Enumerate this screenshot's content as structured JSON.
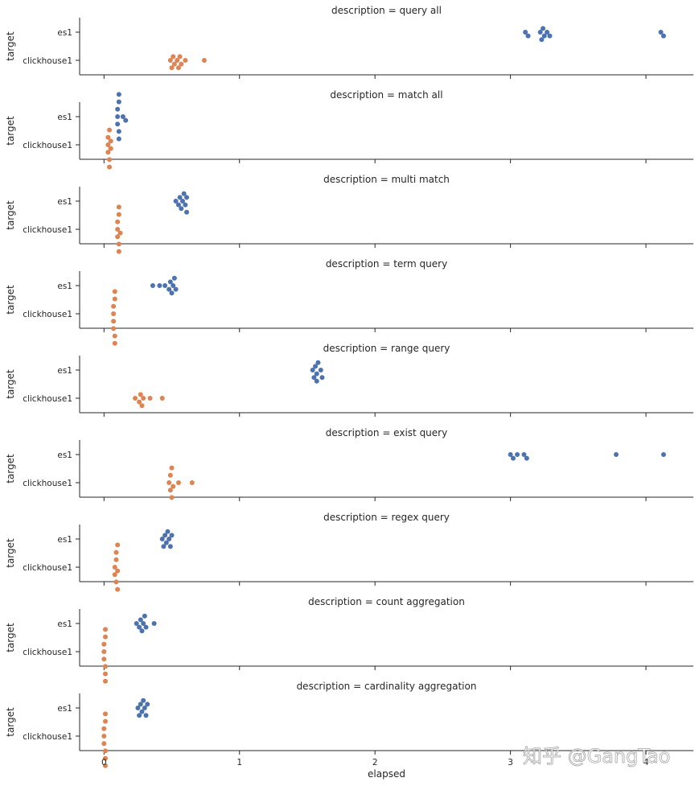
{
  "chart_data": {
    "type": "scatter",
    "kind": "swarm",
    "xlabel": "elapsed",
    "ylabel": "target",
    "xlim": [
      -0.18,
      4.35
    ],
    "xticks": [
      0,
      1,
      2,
      3,
      4
    ],
    "categories": [
      "es1",
      "clickhouse1"
    ],
    "colors": {
      "es1": "#4c72b0",
      "clickhouse1": "#dd8452"
    },
    "grid": false,
    "panels": [
      {
        "title": "description = query all",
        "series": [
          {
            "name": "es1",
            "values": [
              3.11,
              3.13,
              3.22,
              3.23,
              3.24,
              3.25,
              3.27,
              3.29,
              4.11,
              4.13
            ]
          },
          {
            "name": "clickhouse1",
            "values": [
              0.49,
              0.5,
              0.51,
              0.52,
              0.54,
              0.55,
              0.56,
              0.57,
              0.6,
              0.74
            ]
          }
        ]
      },
      {
        "title": "description = match all",
        "series": [
          {
            "name": "es1",
            "values": [
              0.1,
              0.1,
              0.1,
              0.11,
              0.11,
              0.11,
              0.11,
              0.14,
              0.16
            ]
          },
          {
            "name": "clickhouse1",
            "values": [
              0.03,
              0.03,
              0.03,
              0.04,
              0.04,
              0.04,
              0.05,
              0.05
            ]
          }
        ]
      },
      {
        "title": "description = multi match",
        "series": [
          {
            "name": "es1",
            "values": [
              0.53,
              0.55,
              0.56,
              0.57,
              0.58,
              0.59,
              0.6,
              0.61,
              0.61
            ]
          },
          {
            "name": "clickhouse1",
            "values": [
              0.1,
              0.1,
              0.1,
              0.11,
              0.11,
              0.11,
              0.11,
              0.12
            ]
          }
        ]
      },
      {
        "title": "description = term query",
        "series": [
          {
            "name": "es1",
            "values": [
              0.36,
              0.41,
              0.45,
              0.48,
              0.49,
              0.5,
              0.51,
              0.52,
              0.53
            ]
          },
          {
            "name": "clickhouse1",
            "values": [
              0.07,
              0.07,
              0.07,
              0.07,
              0.08,
              0.08,
              0.08,
              0.08
            ]
          }
        ]
      },
      {
        "title": "description = range query",
        "series": [
          {
            "name": "es1",
            "values": [
              1.54,
              1.55,
              1.56,
              1.57,
              1.57,
              1.58,
              1.6,
              1.61
            ]
          },
          {
            "name": "clickhouse1",
            "values": [
              0.23,
              0.26,
              0.27,
              0.28,
              0.29,
              0.34,
              0.43
            ]
          }
        ]
      },
      {
        "title": "description = exist query",
        "series": [
          {
            "name": "es1",
            "values": [
              3.0,
              3.02,
              3.05,
              3.1,
              3.12,
              3.78,
              4.13
            ]
          },
          {
            "name": "clickhouse1",
            "values": [
              0.48,
              0.49,
              0.49,
              0.5,
              0.5,
              0.51,
              0.55,
              0.65
            ]
          }
        ]
      },
      {
        "title": "description = regex query",
        "series": [
          {
            "name": "es1",
            "values": [
              0.43,
              0.44,
              0.45,
              0.46,
              0.47,
              0.48,
              0.49,
              0.5
            ]
          },
          {
            "name": "clickhouse1",
            "values": [
              0.08,
              0.08,
              0.09,
              0.09,
              0.09,
              0.1,
              0.1,
              0.1
            ]
          }
        ]
      },
      {
        "title": "description = count aggregation",
        "series": [
          {
            "name": "es1",
            "values": [
              0.24,
              0.26,
              0.27,
              0.28,
              0.29,
              0.3,
              0.31,
              0.37
            ]
          },
          {
            "name": "clickhouse1",
            "values": [
              0.0,
              0.0,
              0.0,
              0.01,
              0.01,
              0.01,
              0.01,
              0.01
            ]
          }
        ]
      },
      {
        "title": "description = cardinality aggregation",
        "series": [
          {
            "name": "es1",
            "values": [
              0.25,
              0.26,
              0.27,
              0.28,
              0.29,
              0.3,
              0.31,
              0.32
            ]
          },
          {
            "name": "clickhouse1",
            "values": [
              0.0,
              0.0,
              0.0,
              0.01,
              0.01,
              0.01,
              0.01,
              0.01
            ]
          }
        ]
      }
    ]
  },
  "watermark": "知乎 @GangTao"
}
